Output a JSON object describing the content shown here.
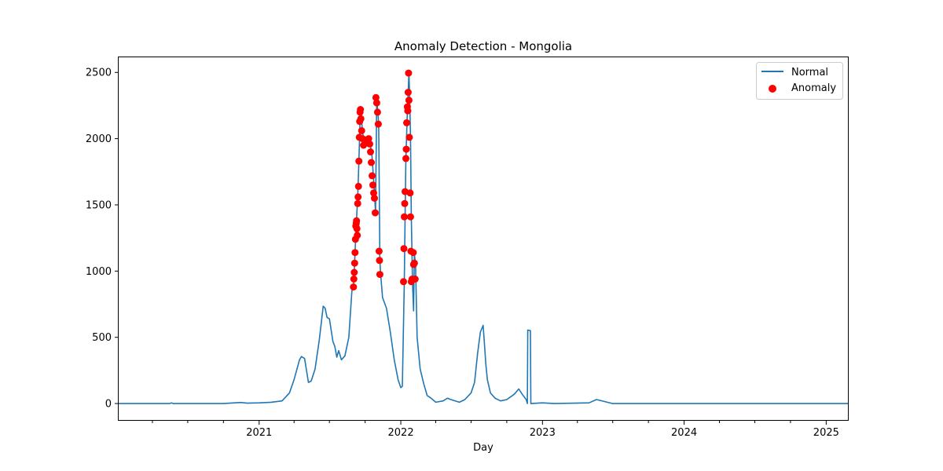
{
  "chart_data": {
    "type": "line",
    "title": "Anomaly Detection - Mongolia",
    "xlabel": "Day",
    "ylabel": "",
    "xlim": [
      "2020-01-03",
      "2025-02-28"
    ],
    "ylim": [
      -130,
      2620
    ],
    "x_ticks": [
      "2021",
      "2022",
      "2023",
      "2024",
      "2025"
    ],
    "y_ticks": [
      0,
      500,
      1000,
      1500,
      2000,
      2500
    ],
    "grid": false,
    "legend_position": "top-right",
    "colors": {
      "normal": "#1f77b4",
      "anomaly": "#ff0000"
    },
    "series": [
      {
        "name": "Normal",
        "kind": "line",
        "points": [
          [
            "2020-01-03",
            0
          ],
          [
            "2020-05-15",
            0
          ],
          [
            "2020-05-20",
            5
          ],
          [
            "2020-05-25",
            0
          ],
          [
            "2020-10-01",
            0
          ],
          [
            "2020-11-15",
            8
          ],
          [
            "2020-12-01",
            3
          ],
          [
            "2021-01-01",
            5
          ],
          [
            "2021-02-01",
            10
          ],
          [
            "2021-03-01",
            20
          ],
          [
            "2021-03-20",
            80
          ],
          [
            "2021-04-01",
            180
          ],
          [
            "2021-04-15",
            330
          ],
          [
            "2021-04-20",
            355
          ],
          [
            "2021-04-28",
            340
          ],
          [
            "2021-05-08",
            160
          ],
          [
            "2021-05-15",
            170
          ],
          [
            "2021-05-25",
            260
          ],
          [
            "2021-06-05",
            480
          ],
          [
            "2021-06-15",
            735
          ],
          [
            "2021-06-20",
            720
          ],
          [
            "2021-06-25",
            650
          ],
          [
            "2021-07-01",
            640
          ],
          [
            "2021-07-10",
            470
          ],
          [
            "2021-07-15",
            430
          ],
          [
            "2021-07-20",
            350
          ],
          [
            "2021-07-25",
            400
          ],
          [
            "2021-08-01",
            330
          ],
          [
            "2021-08-10",
            360
          ],
          [
            "2021-08-20",
            500
          ],
          [
            "2021-08-28",
            850
          ],
          [
            "2021-09-01",
            880
          ],
          [
            "2021-09-03",
            990
          ],
          [
            "2021-09-05",
            1140
          ],
          [
            "2021-09-08",
            1350
          ],
          [
            "2021-09-12",
            1560
          ],
          [
            "2021-09-15",
            1830
          ],
          [
            "2021-09-18",
            2130
          ],
          [
            "2021-09-20",
            2225
          ],
          [
            "2021-09-24",
            2050
          ],
          [
            "2021-10-01",
            1950
          ],
          [
            "2021-10-10",
            2000
          ],
          [
            "2021-10-18",
            1900
          ],
          [
            "2021-10-25",
            1600
          ],
          [
            "2021-10-28",
            1440
          ],
          [
            "2021-10-31",
            2300
          ],
          [
            "2021-11-03",
            2200
          ],
          [
            "2021-11-05",
            2110
          ],
          [
            "2021-11-08",
            1080
          ],
          [
            "2021-11-10",
            975
          ],
          [
            "2021-11-15",
            800
          ],
          [
            "2021-11-25",
            720
          ],
          [
            "2021-12-05",
            540
          ],
          [
            "2021-12-15",
            330
          ],
          [
            "2021-12-25",
            180
          ],
          [
            "2022-01-01",
            120
          ],
          [
            "2022-01-05",
            130
          ],
          [
            "2022-01-10",
            920
          ],
          [
            "2022-01-12",
            1410
          ],
          [
            "2022-01-14",
            1850
          ],
          [
            "2022-01-18",
            2200
          ],
          [
            "2022-01-20",
            2350
          ],
          [
            "2022-01-22",
            2495
          ],
          [
            "2022-01-24",
            2290
          ],
          [
            "2022-01-26",
            2010
          ],
          [
            "2022-01-28",
            1410
          ],
          [
            "2022-01-31",
            920
          ],
          [
            "2022-02-03",
            700
          ],
          [
            "2022-02-05",
            1130
          ],
          [
            "2022-02-08",
            1050
          ],
          [
            "2022-02-12",
            500
          ],
          [
            "2022-02-20",
            260
          ],
          [
            "2022-03-01",
            150
          ],
          [
            "2022-03-10",
            60
          ],
          [
            "2022-03-20",
            40
          ],
          [
            "2022-04-01",
            10
          ],
          [
            "2022-04-20",
            20
          ],
          [
            "2022-05-01",
            40
          ],
          [
            "2022-05-10",
            30
          ],
          [
            "2022-06-01",
            10
          ],
          [
            "2022-06-15",
            30
          ],
          [
            "2022-07-01",
            80
          ],
          [
            "2022-07-10",
            160
          ],
          [
            "2022-07-18",
            380
          ],
          [
            "2022-07-25",
            540
          ],
          [
            "2022-08-01",
            590
          ],
          [
            "2022-08-05",
            430
          ],
          [
            "2022-08-08",
            300
          ],
          [
            "2022-08-12",
            180
          ],
          [
            "2022-08-20",
            80
          ],
          [
            "2022-09-01",
            40
          ],
          [
            "2022-09-15",
            20
          ],
          [
            "2022-10-01",
            30
          ],
          [
            "2022-10-20",
            70
          ],
          [
            "2022-11-01",
            110
          ],
          [
            "2022-11-10",
            70
          ],
          [
            "2022-11-20",
            30
          ],
          [
            "2022-11-23",
            0
          ],
          [
            "2022-11-24",
            555
          ],
          [
            "2022-12-01",
            550
          ],
          [
            "2022-12-02",
            0
          ],
          [
            "2023-01-01",
            5
          ],
          [
            "2023-02-01",
            0
          ],
          [
            "2023-05-01",
            5
          ],
          [
            "2023-05-20",
            30
          ],
          [
            "2023-06-10",
            15
          ],
          [
            "2023-07-01",
            0
          ],
          [
            "2025-02-28",
            0
          ]
        ]
      },
      {
        "name": "Anomaly",
        "kind": "scatter",
        "points": [
          [
            "2021-09-01",
            880
          ],
          [
            "2021-09-02",
            940
          ],
          [
            "2021-09-03",
            990
          ],
          [
            "2021-09-04",
            1060
          ],
          [
            "2021-09-05",
            1140
          ],
          [
            "2021-09-06",
            1240
          ],
          [
            "2021-09-07",
            1340
          ],
          [
            "2021-09-08",
            1360
          ],
          [
            "2021-09-09",
            1380
          ],
          [
            "2021-09-10",
            1320
          ],
          [
            "2021-09-11",
            1270
          ],
          [
            "2021-09-12",
            1510
          ],
          [
            "2021-09-13",
            1560
          ],
          [
            "2021-09-14",
            1640
          ],
          [
            "2021-09-15",
            1830
          ],
          [
            "2021-09-16",
            2010
          ],
          [
            "2021-09-17",
            2130
          ],
          [
            "2021-09-18",
            2200
          ],
          [
            "2021-09-19",
            2220
          ],
          [
            "2021-09-20",
            2150
          ],
          [
            "2021-09-22",
            2060
          ],
          [
            "2021-09-24",
            2000
          ],
          [
            "2021-09-27",
            1950
          ],
          [
            "2021-10-01",
            1990
          ],
          [
            "2021-10-05",
            1970
          ],
          [
            "2021-10-10",
            2000
          ],
          [
            "2021-10-13",
            1960
          ],
          [
            "2021-10-15",
            1900
          ],
          [
            "2021-10-17",
            1820
          ],
          [
            "2021-10-19",
            1720
          ],
          [
            "2021-10-21",
            1650
          ],
          [
            "2021-10-23",
            1590
          ],
          [
            "2021-10-25",
            1550
          ],
          [
            "2021-10-27",
            1440
          ],
          [
            "2021-10-29",
            2310
          ],
          [
            "2021-10-31",
            2270
          ],
          [
            "2021-11-02",
            2200
          ],
          [
            "2021-11-04",
            2110
          ],
          [
            "2021-11-06",
            1150
          ],
          [
            "2021-11-07",
            1080
          ],
          [
            "2021-11-08",
            975
          ],
          [
            "2022-01-08",
            920
          ],
          [
            "2022-01-09",
            1170
          ],
          [
            "2022-01-10",
            1410
          ],
          [
            "2022-01-11",
            1510
          ],
          [
            "2022-01-12",
            1600
          ],
          [
            "2022-01-14",
            1850
          ],
          [
            "2022-01-15",
            1920
          ],
          [
            "2022-01-16",
            2120
          ],
          [
            "2022-01-18",
            2240
          ],
          [
            "2022-01-19",
            2210
          ],
          [
            "2022-01-20",
            2350
          ],
          [
            "2022-01-21",
            2495
          ],
          [
            "2022-01-22",
            2290
          ],
          [
            "2022-01-23",
            2010
          ],
          [
            "2022-01-25",
            1590
          ],
          [
            "2022-01-26",
            1410
          ],
          [
            "2022-01-27",
            1150
          ],
          [
            "2022-01-28",
            920
          ],
          [
            "2022-01-30",
            940
          ],
          [
            "2022-02-02",
            1140
          ],
          [
            "2022-02-03",
            1050
          ],
          [
            "2022-02-05",
            1060
          ],
          [
            "2022-02-07",
            940
          ]
        ]
      }
    ]
  }
}
